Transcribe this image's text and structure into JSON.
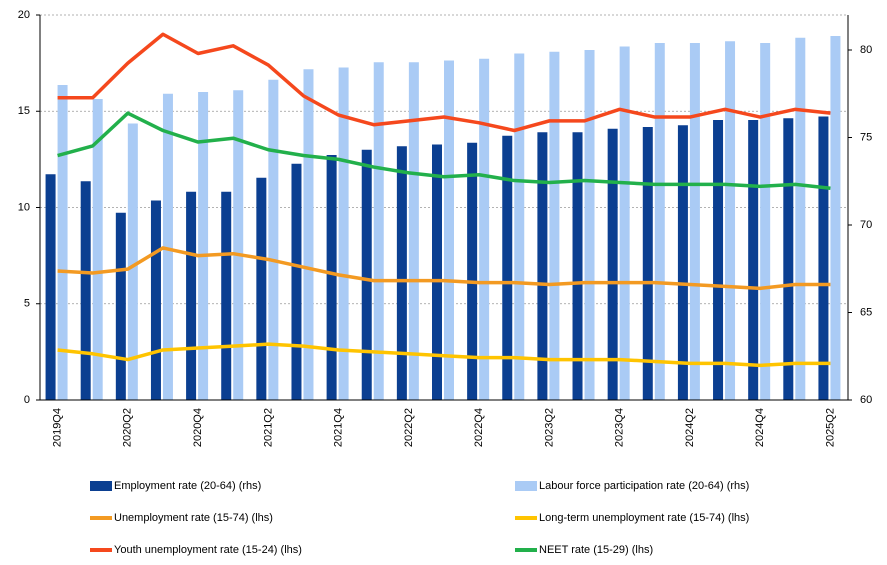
{
  "chart_data": {
    "type": "bar-line",
    "categories": [
      "2019Q4",
      null,
      "2020Q2",
      null,
      "2020Q4",
      null,
      "2021Q2",
      null,
      "2021Q4",
      null,
      "2022Q2",
      null,
      "2022Q4",
      null,
      "2023Q2",
      null,
      "2023Q4",
      null,
      "2024Q2",
      null,
      "2024Q4",
      null,
      "2025Q2"
    ],
    "series": [
      {
        "name": "Employment rate (20-64) (rhs)",
        "type": "bar",
        "axis": "y2",
        "color": "#0b3f91",
        "values": [
          72.9,
          72.5,
          70.7,
          71.4,
          71.9,
          71.9,
          72.7,
          73.5,
          74.0,
          74.3,
          74.5,
          74.6,
          74.7,
          75.1,
          75.3,
          75.3,
          75.5,
          75.6,
          75.7,
          76.0,
          76.0,
          76.1,
          76.2
        ]
      },
      {
        "name": "Labour force participation rate (20-64) (rhs)",
        "type": "bar",
        "axis": "y2",
        "color": "#aacbf5",
        "values": [
          78.0,
          77.2,
          75.8,
          77.5,
          77.6,
          77.7,
          78.3,
          78.9,
          79.0,
          79.3,
          79.3,
          79.4,
          79.5,
          79.8,
          79.9,
          80.0,
          80.2,
          80.4,
          80.4,
          80.5,
          80.4,
          80.7,
          80.8
        ]
      },
      {
        "name": "Unemployment rate (15-74) (lhs)",
        "type": "line",
        "color": "#f39a22",
        "values": [
          6.7,
          6.6,
          6.8,
          7.9,
          7.5,
          7.6,
          7.3,
          6.9,
          6.5,
          6.2,
          6.2,
          6.2,
          6.1,
          6.1,
          6.0,
          6.1,
          6.1,
          6.1,
          6.0,
          5.9,
          5.8,
          6.0,
          6.0
        ]
      },
      {
        "name": "Long-term unemployment rate (15-74) (lhs)",
        "type": "line",
        "color": "#ffc400",
        "values": [
          2.6,
          2.4,
          2.1,
          2.6,
          2.7,
          2.8,
          2.9,
          2.8,
          2.6,
          2.5,
          2.4,
          2.3,
          2.2,
          2.2,
          2.1,
          2.1,
          2.1,
          2.0,
          1.9,
          1.9,
          1.8,
          1.9,
          1.9
        ]
      },
      {
        "name": "Youth unemployment rate (15-24) (lhs)",
        "type": "line",
        "color": "#f5481d",
        "values": [
          15.7,
          15.7,
          17.5,
          19.0,
          18.0,
          18.4,
          17.4,
          15.8,
          14.8,
          14.3,
          14.5,
          14.7,
          14.4,
          14.0,
          14.5,
          14.5,
          15.1,
          14.7,
          14.7,
          15.1,
          14.7,
          15.1,
          14.9
        ]
      },
      {
        "name": "NEET rate (15-29) (lhs)",
        "type": "line",
        "color": "#22b04b",
        "values": [
          12.7,
          13.2,
          14.9,
          14.0,
          13.4,
          13.6,
          13.0,
          12.7,
          12.5,
          12.1,
          11.8,
          11.6,
          11.7,
          11.4,
          11.3,
          11.4,
          11.3,
          11.2,
          11.2,
          11.2,
          11.1,
          11.2,
          11.0
        ]
      }
    ],
    "ylim": [
      0,
      20
    ],
    "yticks": [
      0,
      5,
      10,
      15,
      20
    ],
    "y2lim": [
      60,
      82
    ],
    "y2ticks": [
      60,
      65,
      70,
      75,
      80
    ],
    "grid": true,
    "legend": "bottom"
  }
}
